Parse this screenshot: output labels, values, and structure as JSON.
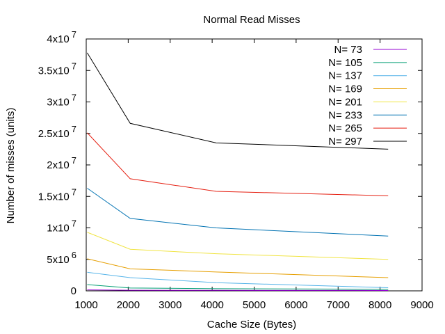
{
  "chart_data": {
    "type": "line",
    "title": "Normal Read Misses",
    "xlabel": "Cache Size (Bytes)",
    "ylabel": "Number of misses (units)",
    "xlim": [
      1000,
      9000
    ],
    "ylim": [
      0,
      40000000
    ],
    "x_ticks": [
      {
        "value": 1000,
        "label": "1000"
      },
      {
        "value": 2000,
        "label": "2000"
      },
      {
        "value": 3000,
        "label": "3000"
      },
      {
        "value": 4000,
        "label": "4000"
      },
      {
        "value": 5000,
        "label": "5000"
      },
      {
        "value": 6000,
        "label": "6000"
      },
      {
        "value": 7000,
        "label": "7000"
      },
      {
        "value": 8000,
        "label": "8000"
      },
      {
        "value": 9000,
        "label": "9000"
      }
    ],
    "y_ticks": [
      {
        "value": 0,
        "base": "0",
        "exp": ""
      },
      {
        "value": 5000000,
        "base": "5x10",
        "exp": "6"
      },
      {
        "value": 10000000,
        "base": "1x10",
        "exp": "7"
      },
      {
        "value": 15000000,
        "base": "1.5x10",
        "exp": "7"
      },
      {
        "value": 20000000,
        "base": "2x10",
        "exp": "7"
      },
      {
        "value": 25000000,
        "base": "2.5x10",
        "exp": "7"
      },
      {
        "value": 30000000,
        "base": "3x10",
        "exp": "7"
      },
      {
        "value": 35000000,
        "base": "3.5x10",
        "exp": "7"
      },
      {
        "value": 40000000,
        "base": "4x10",
        "exp": "7"
      }
    ],
    "grid": false,
    "legend_position": "top-right",
    "x": [
      1024,
      2048,
      4096,
      8192
    ],
    "series": [
      {
        "name": "N= 73",
        "color": "#9400d3",
        "values": [
          150000,
          100000,
          80000,
          60000
        ]
      },
      {
        "name": "N= 105",
        "color": "#009e73",
        "values": [
          1000000,
          450000,
          350000,
          250000
        ]
      },
      {
        "name": "N= 137",
        "color": "#56b4e9",
        "values": [
          2950000,
          2100000,
          1300000,
          500000
        ]
      },
      {
        "name": "N= 169",
        "color": "#e69f00",
        "values": [
          5100000,
          3500000,
          3000000,
          2100000
        ]
      },
      {
        "name": "N= 201",
        "color": "#f0e442",
        "values": [
          9300000,
          6600000,
          5900000,
          5000000
        ]
      },
      {
        "name": "N= 233",
        "color": "#0072b2",
        "values": [
          16300000,
          11500000,
          10000000,
          8700000
        ]
      },
      {
        "name": "N= 265",
        "color": "#e51e10",
        "values": [
          25100000,
          17800000,
          15800000,
          15100000
        ]
      },
      {
        "name": "N= 297",
        "color": "#000000",
        "values": [
          37800000,
          26600000,
          23500000,
          22500000
        ]
      }
    ]
  }
}
